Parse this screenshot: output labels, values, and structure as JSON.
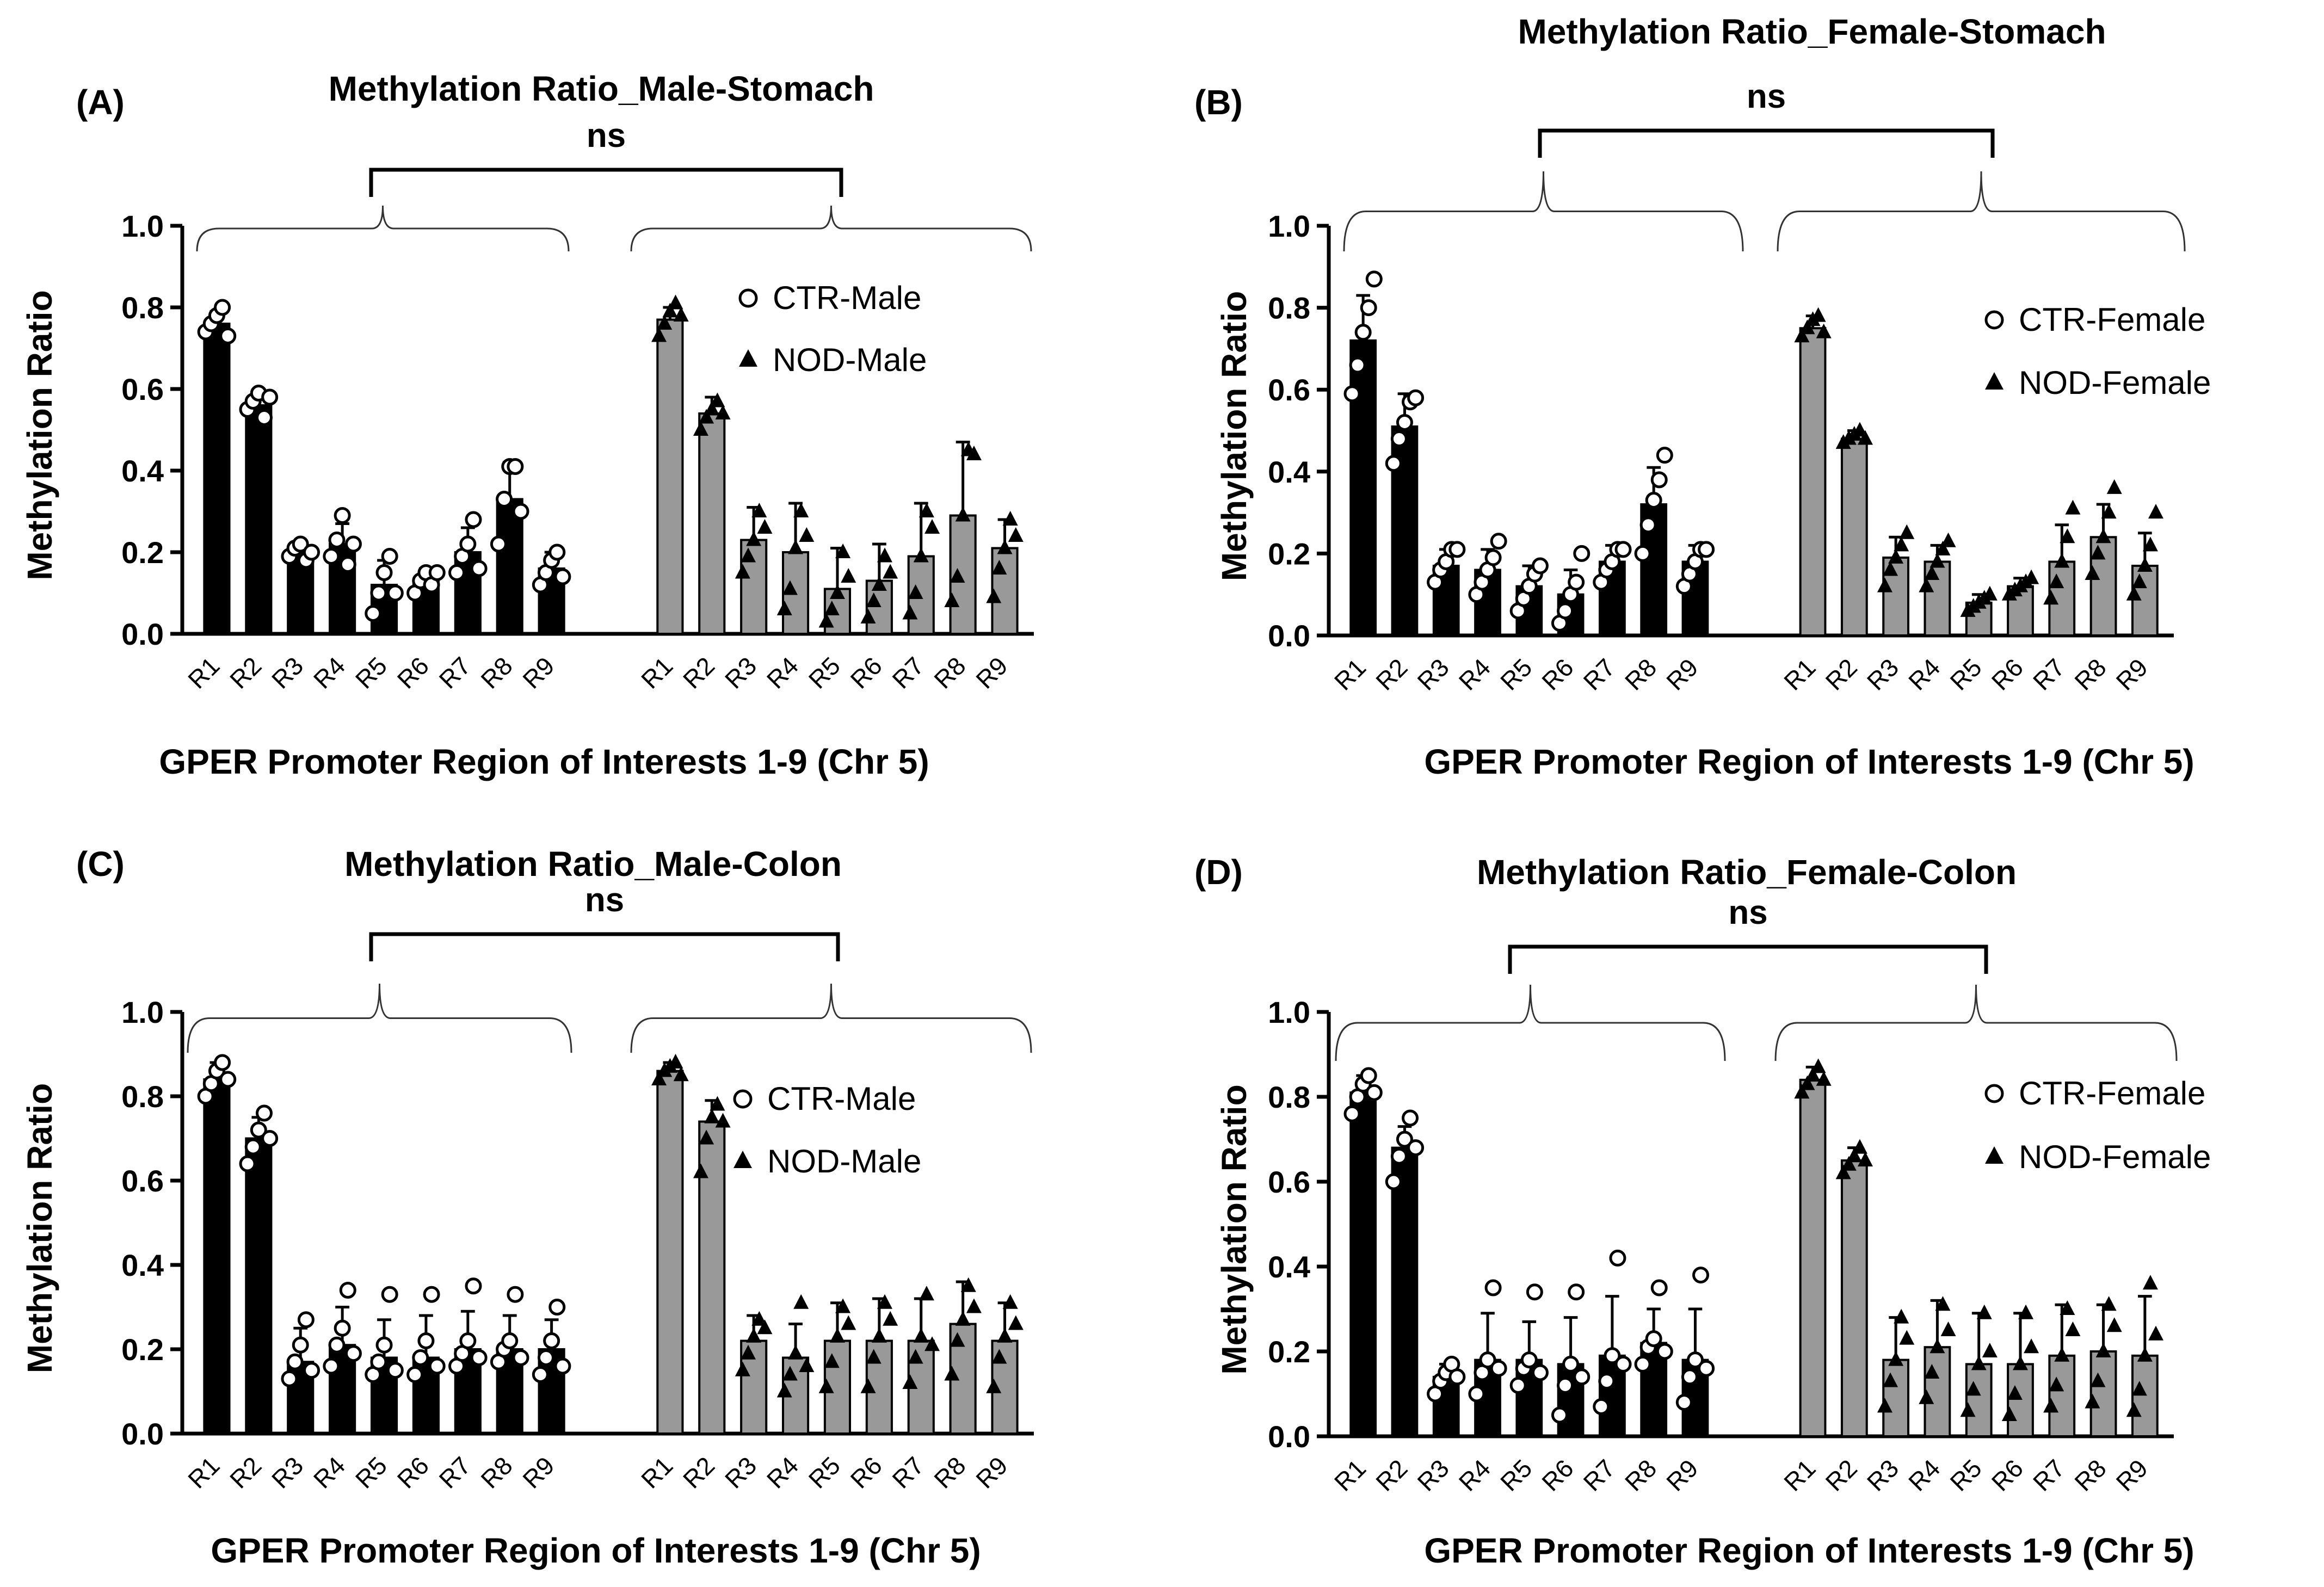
{
  "figure": {
    "colors": {
      "ctr_bar": "#000000",
      "nod_bar": "#999999",
      "axis": "#000000",
      "marker_ctr_fill": "#ffffff",
      "marker_nod_fill": "#000000"
    }
  },
  "chart_data": [
    {
      "panel": "(A)",
      "type": "bar",
      "title": "Methylation Ratio_Male-Stomach",
      "significance": "ns",
      "xlabel": "GPER Promoter Region of Interests 1-9 (Chr 5)",
      "ylabel": "Methylation Ratio",
      "ylim": [
        0.0,
        1.0
      ],
      "yticks": [
        "0.0",
        "0.2",
        "0.4",
        "0.6",
        "0.8",
        "1.0"
      ],
      "legend_position": "right",
      "categories": [
        "R1",
        "R2",
        "R3",
        "R4",
        "R5",
        "R6",
        "R7",
        "R8",
        "R9"
      ],
      "series": [
        {
          "name": "CTR-Male",
          "marker": "circle-open",
          "values": [
            0.76,
            0.56,
            0.2,
            0.22,
            0.12,
            0.13,
            0.2,
            0.33,
            0.16
          ],
          "errors": [
            0.03,
            0.03,
            0.02,
            0.05,
            0.06,
            0.03,
            0.06,
            0.09,
            0.04
          ],
          "points": [
            [
              0.74,
              0.76,
              0.78,
              0.8,
              0.73
            ],
            [
              0.55,
              0.57,
              0.59,
              0.53,
              0.58
            ],
            [
              0.19,
              0.21,
              0.22,
              0.18,
              0.2
            ],
            [
              0.19,
              0.23,
              0.29,
              0.17,
              0.22
            ],
            [
              0.05,
              0.1,
              0.15,
              0.19,
              0.1
            ],
            [
              0.1,
              0.13,
              0.15,
              0.12,
              0.15
            ],
            [
              0.15,
              0.19,
              0.22,
              0.28,
              0.16
            ],
            [
              0.22,
              0.33,
              0.41,
              0.41,
              0.3
            ],
            [
              0.12,
              0.15,
              0.18,
              0.2,
              0.14
            ]
          ]
        },
        {
          "name": "NOD-Male",
          "marker": "triangle-filled",
          "values": [
            0.77,
            0.54,
            0.23,
            0.2,
            0.11,
            0.13,
            0.19,
            0.29,
            0.21
          ],
          "errors": [
            0.03,
            0.04,
            0.08,
            0.12,
            0.1,
            0.09,
            0.13,
            0.18,
            0.07
          ],
          "points": [
            [
              0.73,
              0.76,
              0.79,
              0.81,
              0.78
            ],
            [
              0.5,
              0.53,
              0.55,
              0.57,
              0.54
            ],
            [
              0.15,
              0.19,
              0.23,
              0.3,
              0.26
            ],
            [
              0.06,
              0.11,
              0.21,
              0.3,
              0.24
            ],
            [
              0.03,
              0.06,
              0.1,
              0.2,
              0.14
            ],
            [
              0.04,
              0.08,
              0.12,
              0.19,
              0.15
            ],
            [
              0.05,
              0.1,
              0.19,
              0.3,
              0.26
            ],
            [
              0.08,
              0.14,
              0.29,
              0.45,
              0.44
            ],
            [
              0.09,
              0.16,
              0.21,
              0.28,
              0.24
            ]
          ]
        }
      ]
    },
    {
      "panel": "(B)",
      "type": "bar",
      "title": "Methylation Ratio_Female-Stomach",
      "significance": "ns",
      "xlabel": "GPER Promoter Region of Interests 1-9 (Chr 5)",
      "ylabel": "Methylation Ratio",
      "ylim": [
        0.0,
        1.0
      ],
      "yticks": [
        "0.0",
        "0.2",
        "0.4",
        "0.6",
        "0.8",
        "1.0"
      ],
      "legend_position": "right",
      "categories": [
        "R1",
        "R2",
        "R3",
        "R4",
        "R5",
        "R6",
        "R7",
        "R8",
        "R9"
      ],
      "series": [
        {
          "name": "CTR-Female",
          "marker": "circle-open",
          "values": [
            0.72,
            0.51,
            0.17,
            0.16,
            0.12,
            0.1,
            0.18,
            0.32,
            0.18
          ],
          "errors": [
            0.11,
            0.08,
            0.04,
            0.05,
            0.05,
            0.06,
            0.04,
            0.09,
            0.04
          ],
          "points": [
            [
              0.59,
              0.66,
              0.74,
              0.8,
              0.87
            ],
            [
              0.42,
              0.48,
              0.52,
              0.57,
              0.58
            ],
            [
              0.13,
              0.16,
              0.18,
              0.21,
              0.21
            ],
            [
              0.1,
              0.13,
              0.16,
              0.19,
              0.23
            ],
            [
              0.06,
              0.09,
              0.12,
              0.15,
              0.17
            ],
            [
              0.03,
              0.06,
              0.1,
              0.13,
              0.2
            ],
            [
              0.13,
              0.16,
              0.18,
              0.21,
              0.21
            ],
            [
              0.2,
              0.27,
              0.33,
              0.38,
              0.44
            ],
            [
              0.12,
              0.15,
              0.18,
              0.21,
              0.21
            ]
          ]
        },
        {
          "name": "NOD-Female",
          "marker": "triangle-filled",
          "values": [
            0.75,
            0.48,
            0.19,
            0.18,
            0.08,
            0.12,
            0.18,
            0.24,
            0.17
          ],
          "errors": [
            0.03,
            0.02,
            0.05,
            0.04,
            0.02,
            0.02,
            0.09,
            0.08,
            0.08
          ],
          "points": [
            [
              0.73,
              0.75,
              0.77,
              0.78,
              0.74
            ],
            [
              0.47,
              0.48,
              0.49,
              0.5,
              0.48
            ],
            [
              0.12,
              0.16,
              0.19,
              0.22,
              0.25
            ],
            [
              0.12,
              0.15,
              0.18,
              0.21,
              0.23
            ],
            [
              0.06,
              0.07,
              0.08,
              0.09,
              0.1
            ],
            [
              0.1,
              0.11,
              0.12,
              0.13,
              0.14
            ],
            [
              0.09,
              0.13,
              0.18,
              0.24,
              0.31
            ],
            [
              0.15,
              0.2,
              0.24,
              0.3,
              0.36
            ],
            [
              0.1,
              0.13,
              0.17,
              0.22,
              0.3
            ]
          ]
        }
      ]
    },
    {
      "panel": "(C)",
      "type": "bar",
      "title": "Methylation Ratio_Male-Colon",
      "significance": "ns",
      "xlabel": "GPER Promoter Region of Interests 1-9 (Chr 5)",
      "ylabel": "Methylation Ratio",
      "ylim": [
        0.0,
        1.0
      ],
      "yticks": [
        "0.0",
        "0.2",
        "0.4",
        "0.6",
        "0.8",
        "1.0"
      ],
      "legend_position": "right",
      "categories": [
        "R1",
        "R2",
        "R3",
        "R4",
        "R5",
        "R6",
        "R7",
        "R8",
        "R9"
      ],
      "series": [
        {
          "name": "CTR-Male",
          "marker": "circle-open",
          "values": [
            0.84,
            0.7,
            0.17,
            0.21,
            0.18,
            0.18,
            0.2,
            0.2,
            0.2
          ],
          "errors": [
            0.04,
            0.05,
            0.08,
            0.09,
            0.09,
            0.1,
            0.09,
            0.08,
            0.07
          ],
          "points": [
            [
              0.8,
              0.83,
              0.86,
              0.88,
              0.84
            ],
            [
              0.64,
              0.68,
              0.72,
              0.76,
              0.7
            ],
            [
              0.13,
              0.17,
              0.21,
              0.27,
              0.15
            ],
            [
              0.16,
              0.21,
              0.25,
              0.34,
              0.19
            ],
            [
              0.14,
              0.17,
              0.21,
              0.33,
              0.15
            ],
            [
              0.14,
              0.18,
              0.22,
              0.33,
              0.16
            ],
            [
              0.16,
              0.19,
              0.22,
              0.35,
              0.18
            ],
            [
              0.17,
              0.2,
              0.22,
              0.33,
              0.18
            ],
            [
              0.14,
              0.18,
              0.22,
              0.3,
              0.16
            ]
          ]
        },
        {
          "name": "NOD-Male",
          "marker": "triangle-filled",
          "values": [
            0.86,
            0.74,
            0.22,
            0.18,
            0.22,
            0.22,
            0.22,
            0.26,
            0.22
          ],
          "errors": [
            0.02,
            0.05,
            0.06,
            0.08,
            0.09,
            0.1,
            0.1,
            0.1,
            0.09
          ],
          "points": [
            [
              0.84,
              0.86,
              0.87,
              0.88,
              0.85
            ],
            [
              0.62,
              0.7,
              0.75,
              0.78,
              0.74
            ],
            [
              0.15,
              0.19,
              0.23,
              0.27,
              0.25
            ],
            [
              0.1,
              0.14,
              0.19,
              0.31,
              0.16
            ],
            [
              0.11,
              0.17,
              0.23,
              0.3,
              0.26
            ],
            [
              0.11,
              0.18,
              0.23,
              0.31,
              0.27
            ],
            [
              0.12,
              0.18,
              0.23,
              0.33,
              0.21
            ],
            [
              0.14,
              0.22,
              0.27,
              0.35,
              0.3
            ],
            [
              0.11,
              0.18,
              0.23,
              0.31,
              0.26
            ]
          ]
        }
      ]
    },
    {
      "panel": "(D)",
      "type": "bar",
      "title": "Methylation Ratio_Female-Colon",
      "significance": "ns",
      "xlabel": "GPER Promoter Region of Interests 1-9 (Chr 5)",
      "ylabel": "Methylation Ratio",
      "ylim": [
        0.0,
        1.0
      ],
      "yticks": [
        "0.0",
        "0.2",
        "0.4",
        "0.6",
        "0.8",
        "1.0"
      ],
      "legend_position": "right",
      "categories": [
        "R1",
        "R2",
        "R3",
        "R4",
        "R5",
        "R6",
        "R7",
        "R8",
        "R9"
      ],
      "series": [
        {
          "name": "CTR-Female",
          "marker": "circle-open",
          "values": [
            0.81,
            0.68,
            0.14,
            0.18,
            0.18,
            0.17,
            0.19,
            0.22,
            0.18
          ],
          "errors": [
            0.04,
            0.05,
            0.03,
            0.11,
            0.09,
            0.11,
            0.14,
            0.08,
            0.12
          ],
          "points": [
            [
              0.76,
              0.8,
              0.83,
              0.85,
              0.81
            ],
            [
              0.6,
              0.66,
              0.7,
              0.75,
              0.68
            ],
            [
              0.1,
              0.13,
              0.15,
              0.17,
              0.14
            ],
            [
              0.1,
              0.15,
              0.18,
              0.35,
              0.16
            ],
            [
              0.12,
              0.16,
              0.18,
              0.34,
              0.15
            ],
            [
              0.05,
              0.12,
              0.17,
              0.34,
              0.14
            ],
            [
              0.07,
              0.13,
              0.19,
              0.42,
              0.17
            ],
            [
              0.17,
              0.21,
              0.23,
              0.35,
              0.2
            ],
            [
              0.08,
              0.14,
              0.18,
              0.38,
              0.16
            ]
          ]
        },
        {
          "name": "NOD-Female",
          "marker": "triangle-filled",
          "values": [
            0.84,
            0.65,
            0.18,
            0.21,
            0.17,
            0.17,
            0.19,
            0.2,
            0.19
          ],
          "errors": [
            0.03,
            0.03,
            0.1,
            0.11,
            0.12,
            0.12,
            0.12,
            0.11,
            0.14
          ],
          "points": [
            [
              0.81,
              0.83,
              0.85,
              0.87,
              0.84
            ],
            [
              0.62,
              0.64,
              0.66,
              0.68,
              0.65
            ],
            [
              0.07,
              0.13,
              0.18,
              0.28,
              0.23
            ],
            [
              0.09,
              0.15,
              0.21,
              0.31,
              0.25
            ],
            [
              0.06,
              0.11,
              0.17,
              0.29,
              0.2
            ],
            [
              0.05,
              0.1,
              0.17,
              0.29,
              0.21
            ],
            [
              0.07,
              0.12,
              0.19,
              0.3,
              0.25
            ],
            [
              0.08,
              0.13,
              0.2,
              0.31,
              0.26
            ],
            [
              0.06,
              0.11,
              0.19,
              0.36,
              0.24
            ]
          ]
        }
      ]
    }
  ]
}
